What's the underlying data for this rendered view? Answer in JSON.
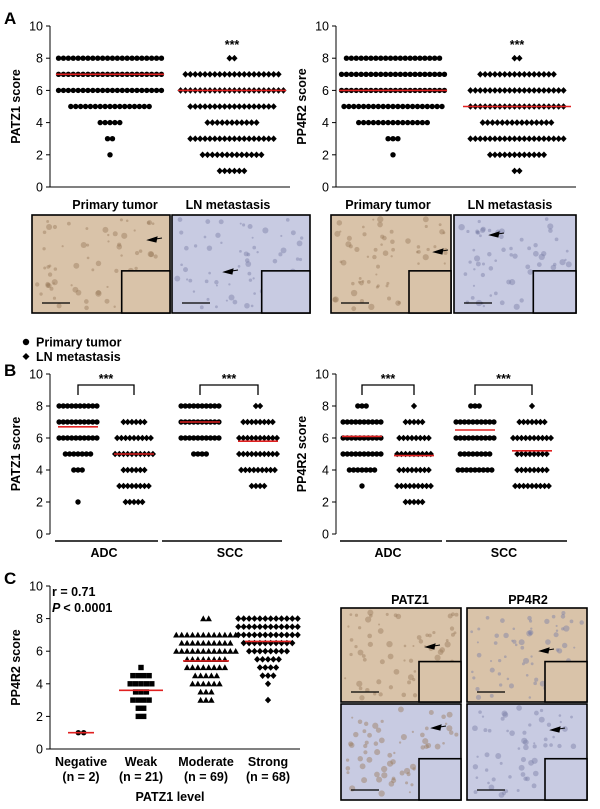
{
  "panels": {
    "A": "A",
    "B": "B",
    "C": "C"
  },
  "colors": {
    "median": "#e02020",
    "marker": "#000000",
    "tissue_tan": "#d9c3a9",
    "tissue_blue": "#c8cbe2"
  },
  "legend": {
    "primary": "Primary tumor",
    "ln": "LN metastasis"
  },
  "significance": "***",
  "micrographs": {
    "panelA_left": [
      "Primary tumor",
      "LN metastasis"
    ],
    "panelA_right": [
      "Primary tumor",
      "LN metastasis"
    ],
    "panelC_headers": [
      "PATZ1",
      "PP4R2"
    ]
  },
  "chart_data": [
    {
      "id": "A1",
      "type": "scatter",
      "ylabel": "PATZ1 score",
      "ylim": [
        0,
        10
      ],
      "yticks": [
        0,
        2,
        4,
        6,
        8,
        10
      ],
      "categories": [
        "Primary tumor",
        "LN metastasis"
      ],
      "series": [
        {
          "name": "Primary tumor",
          "marker": "circle",
          "median": 7,
          "points": [
            {
              "y": 8,
              "n": 22
            },
            {
              "y": 7,
              "n": 22
            },
            {
              "y": 6,
              "n": 22
            },
            {
              "y": 5,
              "n": 17
            },
            {
              "y": 4,
              "n": 5
            },
            {
              "y": 3,
              "n": 2
            },
            {
              "y": 2,
              "n": 1
            }
          ]
        },
        {
          "name": "LN metastasis",
          "marker": "diamond",
          "median": 6,
          "annotation": "***",
          "points": [
            {
              "y": 8,
              "n": 2
            },
            {
              "y": 7,
              "n": 20
            },
            {
              "y": 6,
              "n": 22
            },
            {
              "y": 5,
              "n": 18
            },
            {
              "y": 4,
              "n": 11
            },
            {
              "y": 3,
              "n": 18
            },
            {
              "y": 2,
              "n": 13
            },
            {
              "y": 1,
              "n": 6
            }
          ]
        }
      ]
    },
    {
      "id": "A2",
      "type": "scatter",
      "ylabel": "PP4R2 score",
      "ylim": [
        0,
        10
      ],
      "yticks": [
        0,
        2,
        4,
        6,
        8,
        10
      ],
      "categories": [
        "Primary tumor",
        "LN metastasis"
      ],
      "series": [
        {
          "name": "Primary tumor",
          "marker": "circle",
          "median": 6,
          "points": [
            {
              "y": 8,
              "n": 20
            },
            {
              "y": 7,
              "n": 22
            },
            {
              "y": 6,
              "n": 22
            },
            {
              "y": 5,
              "n": 21
            },
            {
              "y": 4,
              "n": 15
            },
            {
              "y": 3,
              "n": 3
            },
            {
              "y": 2,
              "n": 1
            }
          ]
        },
        {
          "name": "LN metastasis",
          "marker": "diamond",
          "median": 5,
          "annotation": "***",
          "points": [
            {
              "y": 8,
              "n": 2
            },
            {
              "y": 7,
              "n": 16
            },
            {
              "y": 6,
              "n": 20
            },
            {
              "y": 5,
              "n": 20
            },
            {
              "y": 4,
              "n": 15
            },
            {
              "y": 3,
              "n": 20
            },
            {
              "y": 2,
              "n": 12
            },
            {
              "y": 1,
              "n": 2
            }
          ]
        }
      ]
    },
    {
      "id": "B1",
      "type": "scatter",
      "ylabel": "PATZ1 score",
      "ylim": [
        0,
        10
      ],
      "yticks": [
        0,
        2,
        4,
        6,
        8,
        10
      ],
      "groups": [
        {
          "label": "ADC",
          "annotation": "***"
        },
        {
          "label": "SCC",
          "annotation": "***"
        }
      ],
      "series": [
        {
          "name": "ADC Primary tumor",
          "marker": "circle",
          "median": 6.7,
          "points": [
            {
              "y": 8,
              "n": 10
            },
            {
              "y": 7,
              "n": 10
            },
            {
              "y": 6,
              "n": 10
            },
            {
              "y": 5,
              "n": 7
            },
            {
              "y": 4,
              "n": 3
            },
            {
              "y": 2,
              "n": 1
            }
          ]
        },
        {
          "name": "ADC LN metastasis",
          "marker": "diamond",
          "median": 5,
          "points": [
            {
              "y": 7,
              "n": 6
            },
            {
              "y": 6,
              "n": 9
            },
            {
              "y": 5,
              "n": 10
            },
            {
              "y": 4,
              "n": 6
            },
            {
              "y": 3,
              "n": 8
            },
            {
              "y": 2,
              "n": 5
            }
          ]
        },
        {
          "name": "SCC Primary tumor",
          "marker": "circle",
          "median": 7,
          "points": [
            {
              "y": 8,
              "n": 10
            },
            {
              "y": 7,
              "n": 10
            },
            {
              "y": 6,
              "n": 10
            },
            {
              "y": 5,
              "n": 4
            }
          ]
        },
        {
          "name": "SCC LN metastasis",
          "marker": "diamond",
          "median": 5.8,
          "points": [
            {
              "y": 8,
              "n": 2
            },
            {
              "y": 7,
              "n": 8
            },
            {
              "y": 6,
              "n": 10
            },
            {
              "y": 5,
              "n": 10
            },
            {
              "y": 4,
              "n": 9
            },
            {
              "y": 3,
              "n": 4
            }
          ]
        }
      ]
    },
    {
      "id": "B2",
      "type": "scatter",
      "ylabel": "PP4R2 score",
      "ylim": [
        0,
        10
      ],
      "yticks": [
        0,
        2,
        4,
        6,
        8,
        10
      ],
      "groups": [
        {
          "label": "ADC",
          "annotation": "***"
        },
        {
          "label": "SCC",
          "annotation": "***"
        }
      ],
      "series": [
        {
          "name": "ADC Primary tumor",
          "marker": "circle",
          "median": 6.1,
          "points": [
            {
              "y": 8,
              "n": 3
            },
            {
              "y": 7,
              "n": 10
            },
            {
              "y": 6,
              "n": 10
            },
            {
              "y": 5,
              "n": 10
            },
            {
              "y": 4,
              "n": 7
            },
            {
              "y": 3,
              "n": 1
            }
          ]
        },
        {
          "name": "ADC LN metastasis",
          "marker": "diamond",
          "median": 4.9,
          "points": [
            {
              "y": 8,
              "n": 1
            },
            {
              "y": 7,
              "n": 5
            },
            {
              "y": 6,
              "n": 8
            },
            {
              "y": 5,
              "n": 9
            },
            {
              "y": 4,
              "n": 8
            },
            {
              "y": 3,
              "n": 9
            },
            {
              "y": 2,
              "n": 5
            }
          ]
        },
        {
          "name": "SCC Primary tumor",
          "marker": "circle",
          "median": 6.5,
          "points": [
            {
              "y": 8,
              "n": 3
            },
            {
              "y": 7,
              "n": 10
            },
            {
              "y": 6,
              "n": 10
            },
            {
              "y": 5,
              "n": 8
            },
            {
              "y": 4,
              "n": 9
            }
          ]
        },
        {
          "name": "SCC LN metastasis",
          "marker": "diamond",
          "median": 5.2,
          "points": [
            {
              "y": 8,
              "n": 1
            },
            {
              "y": 7,
              "n": 7
            },
            {
              "y": 6,
              "n": 10
            },
            {
              "y": 5,
              "n": 8
            },
            {
              "y": 4,
              "n": 8
            },
            {
              "y": 3,
              "n": 9
            }
          ]
        }
      ]
    },
    {
      "id": "C",
      "type": "scatter",
      "ylabel": "PP4R2 score",
      "xlabel": "PATZ1 level",
      "ylim": [
        0,
        10
      ],
      "yticks": [
        0,
        2,
        4,
        6,
        8,
        10
      ],
      "stats": {
        "r": "r = 0.71",
        "p_label": "P",
        "p_value": "< 0.0001"
      },
      "categories": [
        {
          "label": "Negative",
          "n": "(n = 2)"
        },
        {
          "label": "Weak",
          "n": "(n = 21)"
        },
        {
          "label": "Moderate",
          "n": "(n = 69)"
        },
        {
          "label": "Strong",
          "n": "(n = 68)"
        }
      ],
      "series": [
        {
          "name": "Negative",
          "marker": "circle",
          "median": 1,
          "points": [
            {
              "y": 1,
              "n": 2
            }
          ]
        },
        {
          "name": "Weak",
          "marker": "square",
          "median": 3.6,
          "points": [
            {
              "y": 5,
              "n": 1
            },
            {
              "y": 4.5,
              "n": 4
            },
            {
              "y": 4,
              "n": 5
            },
            {
              "y": 3.5,
              "n": 3
            },
            {
              "y": 3,
              "n": 4
            },
            {
              "y": 2.5,
              "n": 2
            },
            {
              "y": 2,
              "n": 2
            }
          ]
        },
        {
          "name": "Moderate",
          "marker": "triangle",
          "median": 5.4,
          "points": [
            {
              "y": 8,
              "n": 2
            },
            {
              "y": 7,
              "n": 12
            },
            {
              "y": 6.5,
              "n": 10
            },
            {
              "y": 6,
              "n": 12
            },
            {
              "y": 5.5,
              "n": 8
            },
            {
              "y": 5,
              "n": 8
            },
            {
              "y": 4.5,
              "n": 5
            },
            {
              "y": 4,
              "n": 6
            },
            {
              "y": 3.5,
              "n": 3
            },
            {
              "y": 3,
              "n": 3
            }
          ]
        },
        {
          "name": "Strong",
          "marker": "diamond",
          "median": 6.6,
          "points": [
            {
              "y": 8,
              "n": 12
            },
            {
              "y": 7.5,
              "n": 12
            },
            {
              "y": 7,
              "n": 12
            },
            {
              "y": 6.5,
              "n": 10
            },
            {
              "y": 6,
              "n": 8
            },
            {
              "y": 5.5,
              "n": 5
            },
            {
              "y": 5,
              "n": 4
            },
            {
              "y": 4.5,
              "n": 3
            },
            {
              "y": 4,
              "n": 1
            },
            {
              "y": 3,
              "n": 1
            }
          ]
        }
      ]
    }
  ]
}
